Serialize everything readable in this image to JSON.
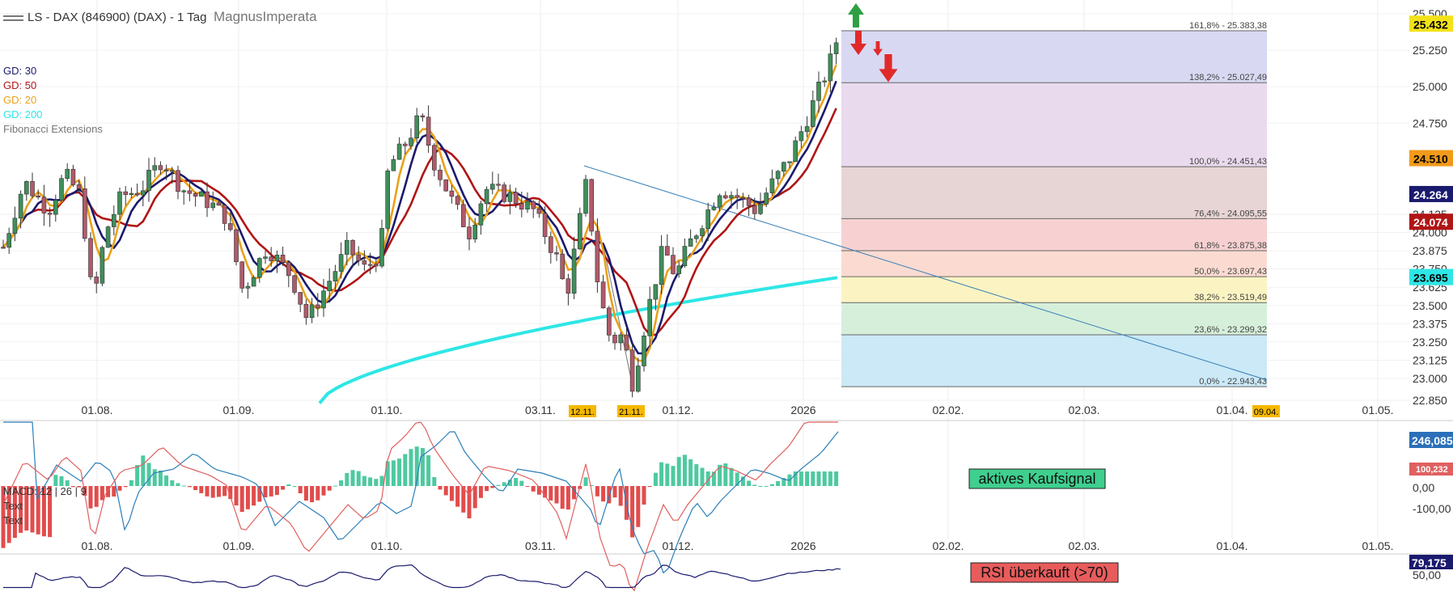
{
  "header": {
    "title": "LS - DAX (846900) (DAX) - 1 Tag",
    "author": "MagnusImperata"
  },
  "legend": [
    {
      "label": "GD: 30",
      "color": "#1a1a6e"
    },
    {
      "label": "GD: 50",
      "color": "#b01515"
    },
    {
      "label": "GD: 20",
      "color": "#e8a21a"
    },
    {
      "label": "GD: 200",
      "color": "#2ee6e6"
    },
    {
      "label": "Fibonacci Extensions",
      "color": "#777777"
    }
  ],
  "x_ticks": [
    "01.08.",
    "01.09.",
    "01.10.",
    "03.11.",
    "01.12.",
    "2026",
    "02.02.",
    "02.03.",
    "01.04.",
    "01.05."
  ],
  "x_date_badges": [
    "12.11.",
    "21.11.",
    "09.04."
  ],
  "y_ticks": [
    "25.500",
    "25.250",
    "25.000",
    "24.750",
    "24.125",
    "24.000",
    "23.875",
    "23.750",
    "23.625",
    "23.500",
    "23.375",
    "23.250",
    "23.125",
    "23.000",
    "22.850"
  ],
  "price_badges": [
    {
      "label": "25.432",
      "color": "#f2e21a",
      "text_color": "#000000"
    },
    {
      "label": "24.510",
      "color": "#f29a1a",
      "text_color": "#000000"
    },
    {
      "label": "24.264",
      "color": "#1a1a6e",
      "text_color": "#ffffff"
    },
    {
      "label": "24.074",
      "color": "#b01515",
      "text_color": "#ffffff"
    },
    {
      "label": "23.695",
      "color": "#2ee6e6",
      "text_color": "#000000"
    }
  ],
  "fibonacci": [
    {
      "label": "161,8% - 25.383,38",
      "value": 25383.38,
      "fill": "#d6d6f2"
    },
    {
      "label": "138,2% - 25.027,49",
      "value": 25027.49,
      "fill": "#e8d8ec"
    },
    {
      "label": "100,0% - 24.451,43",
      "value": 24451.43,
      "fill": "#e6d2d2"
    },
    {
      "label": "76,4% - 24.095,55",
      "value": 24095.55,
      "fill": "#f7cfcf"
    },
    {
      "label": "61,8% - 23.875,38",
      "value": 23875.38,
      "fill": "#fbd9cf"
    },
    {
      "label": "50,0% - 23.697,43",
      "value": 23697.43,
      "fill": "#fbf3bf"
    },
    {
      "label": "38,2% - 23.519,49",
      "value": 23519.49,
      "fill": "#d4eed8"
    },
    {
      "label": "23,6% - 23.299,32",
      "value": 23299.32,
      "fill": "#c8e8f6"
    },
    {
      "label": "0,0% - 22.943,43",
      "value": 22943.43,
      "fill": "#c8e8f6"
    }
  ],
  "macd": {
    "label": "MACD: 12 | 26 | 9",
    "text1": "Text",
    "text2": "Text",
    "y_ticks": [
      "0,00",
      "-100,00"
    ],
    "badges": [
      {
        "label": "246,085",
        "color": "#2a6fb8",
        "text_color": "#ffffff"
      },
      {
        "label": "100,232",
        "color": "#e06060",
        "text_color": "#ffffff"
      }
    ],
    "annotation": "aktives Kaufsignal"
  },
  "rsi": {
    "y_ticks": [
      "50,00"
    ],
    "badge": {
      "label": "79,175",
      "color": "#1a1a6e",
      "text_color": "#ffffff"
    },
    "annotation": "RSI überkauft (>70)"
  },
  "chart_data": {
    "type": "candlestick",
    "title": "LS - DAX (846900) (DAX) - 1 Tag",
    "ylim": [
      22800,
      25550
    ],
    "series": [
      {
        "name": "GD: 30",
        "color": "#1a1a6e"
      },
      {
        "name": "GD: 50",
        "color": "#b01515"
      },
      {
        "name": "GD: 20",
        "color": "#e8a21a"
      },
      {
        "name": "GD: 200",
        "color": "#2ee6e6"
      }
    ],
    "last_values": {
      "close": 25432,
      "GD: 20": 24510,
      "GD: 30": 24264,
      "GD: 50": 24074,
      "GD: 200": 23695,
      "MACD": 246.085,
      "Signal": 100.232,
      "RSI": 79.175
    },
    "gridlines": true,
    "legend_position": "top-left"
  }
}
